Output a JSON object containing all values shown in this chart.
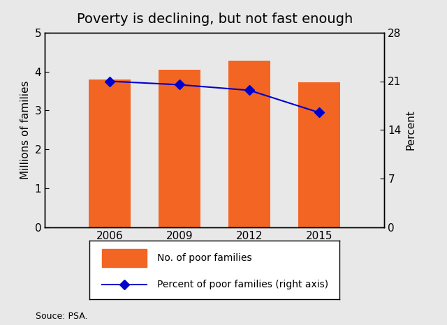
{
  "title": "Poverty is declining, but not fast enough",
  "years": [
    2006,
    2009,
    2012,
    2015
  ],
  "bar_values": [
    3.79,
    4.05,
    4.27,
    3.73
  ],
  "line_values": [
    21.0,
    20.5,
    19.7,
    16.5
  ],
  "bar_color": "#F26522",
  "line_color": "#0000CC",
  "left_ylabel": "Millions of families",
  "right_ylabel": "Percent",
  "left_ylim": [
    0,
    5
  ],
  "left_yticks": [
    0,
    1,
    2,
    3,
    4,
    5
  ],
  "right_ylim": [
    0,
    28
  ],
  "right_yticks": [
    0,
    7,
    14,
    21,
    28
  ],
  "source_text": "Souce: PSA.",
  "bar_label": "No. of poor families",
  "line_label": "Percent of poor families (right axis)",
  "bg_color": "#E8E8E8",
  "bar_width": 1.8,
  "xlim": [
    2003.2,
    2017.8
  ]
}
